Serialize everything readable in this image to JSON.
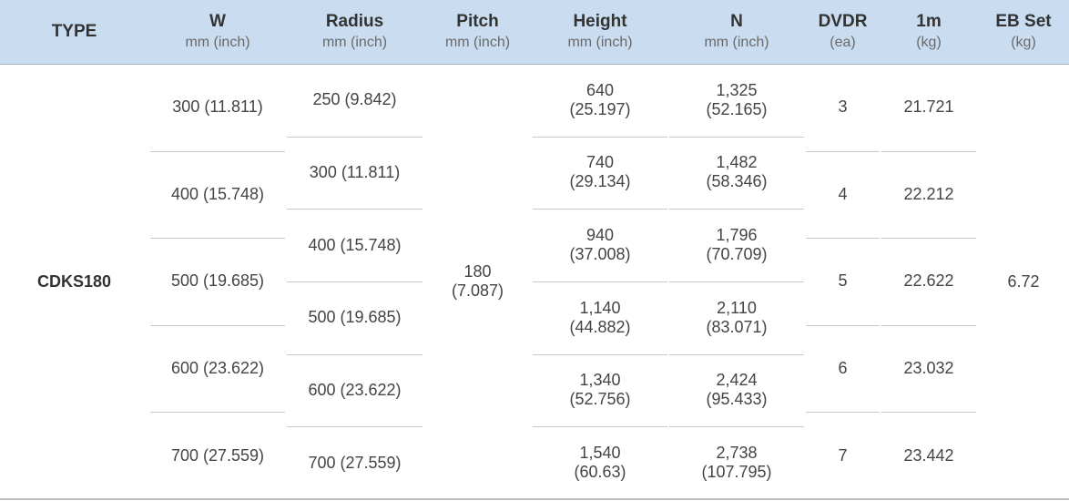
{
  "table": {
    "header": [
      {
        "title": "TYPE"
      },
      {
        "title": "W",
        "unit": "mm (inch)"
      },
      {
        "title": "Radius",
        "unit": "mm (inch)"
      },
      {
        "title": "Pitch",
        "unit": "mm (inch)"
      },
      {
        "title": "Height",
        "unit": "mm (inch)"
      },
      {
        "title": "N",
        "unit": "mm (inch)"
      },
      {
        "title": "DVDR",
        "unit": "(ea)"
      },
      {
        "title": "1m",
        "unit": "(kg)"
      },
      {
        "title": "EB Set",
        "unit": "(kg)"
      }
    ],
    "columns": [
      [
        [
          "CDKS180"
        ]
      ],
      [
        [
          "300 (11.811)"
        ],
        [
          "400 (15.748)"
        ],
        [
          "500 (19.685)"
        ],
        [
          "600 (23.622)"
        ],
        [
          "700 (27.559)"
        ]
      ],
      [
        [
          "250 (9.842)"
        ],
        [
          "300 (11.811)"
        ],
        [
          "400 (15.748)"
        ],
        [
          "500 (19.685)"
        ],
        [
          "600 (23.622)"
        ],
        [
          "700 (27.559)"
        ]
      ],
      [
        [
          "180",
          "(7.087)"
        ]
      ],
      [
        [
          "640",
          "(25.197)"
        ],
        [
          "740",
          "(29.134)"
        ],
        [
          "940",
          "(37.008)"
        ],
        [
          "1,140",
          "(44.882)"
        ],
        [
          "1,340",
          "(52.756)"
        ],
        [
          "1,540",
          "(60.63)"
        ]
      ],
      [
        [
          "1,325",
          "(52.165)"
        ],
        [
          "1,482",
          "(58.346)"
        ],
        [
          "1,796",
          "(70.709)"
        ],
        [
          "2,110",
          "(83.071)"
        ],
        [
          "2,424",
          "(95.433)"
        ],
        [
          "2,738",
          "(107.795)"
        ]
      ],
      [
        [
          "3"
        ],
        [
          "4"
        ],
        [
          "5"
        ],
        [
          "6"
        ],
        [
          "7"
        ]
      ],
      [
        [
          "21.721"
        ],
        [
          "22.212"
        ],
        [
          "22.622"
        ],
        [
          "23.032"
        ],
        [
          "23.442"
        ]
      ],
      [
        [
          "6.72"
        ]
      ]
    ]
  }
}
